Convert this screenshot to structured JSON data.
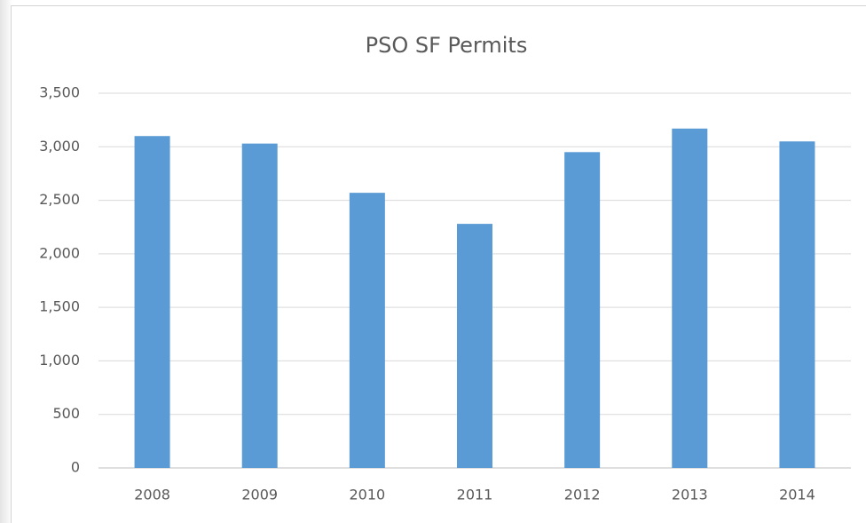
{
  "chart_data": {
    "type": "bar",
    "title": "PSO SF Permits",
    "categories": [
      "2008",
      "2009",
      "2010",
      "2011",
      "2012",
      "2013",
      "2014"
    ],
    "values": [
      3100,
      3030,
      2570,
      2280,
      2950,
      3170,
      3050
    ],
    "color": "#5b9bd5",
    "ylim": [
      0,
      3500
    ],
    "yticks": [
      0,
      500,
      {
        "value": 1000,
        "label": "1,000"
      },
      {
        "value": 1500,
        "label": "1,500"
      },
      {
        "value": 2000,
        "label": "2,000"
      },
      {
        "value": 2500,
        "label": "2,500"
      },
      {
        "value": 3000,
        "label": "3,000"
      },
      {
        "value": 3500,
        "label": "3,500"
      }
    ],
    "grid": true
  }
}
